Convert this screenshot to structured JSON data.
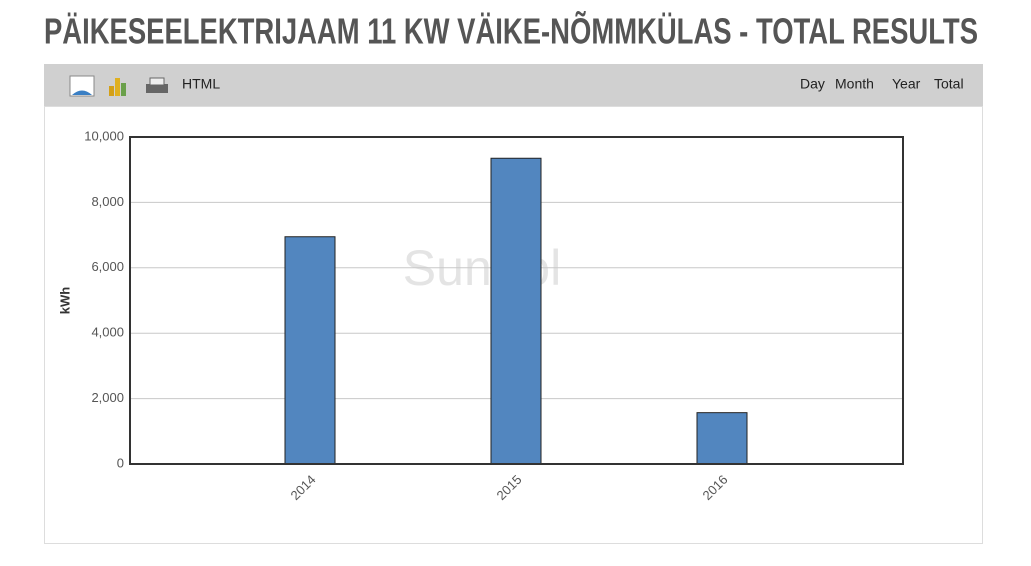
{
  "header": {
    "title": "PÄIKESEELEKTRIJAAM 11 KW VÄIKE-NÕMMKÜLAS - TOTAL RESULTS"
  },
  "toolbar": {
    "export_label": "HTML",
    "periods": [
      "Day",
      "Month",
      "Year",
      "Total"
    ]
  },
  "chart_data": {
    "type": "bar",
    "watermark": "Suntrol",
    "y_label": "kWh",
    "categories": [
      "2014",
      "2015",
      "2016"
    ],
    "values": [
      6950,
      9350,
      1570
    ],
    "color": "#5286bf",
    "ylim": [
      0,
      10000
    ],
    "yticks": [
      0,
      {
        "value": 2000,
        "label": "2,000"
      },
      {
        "value": 4000,
        "label": "4,000"
      },
      {
        "value": 6000,
        "label": "6,000"
      },
      {
        "value": 8000,
        "label": "8,000"
      },
      {
        "value": 10000,
        "label": "10,000"
      }
    ],
    "grid": true
  }
}
